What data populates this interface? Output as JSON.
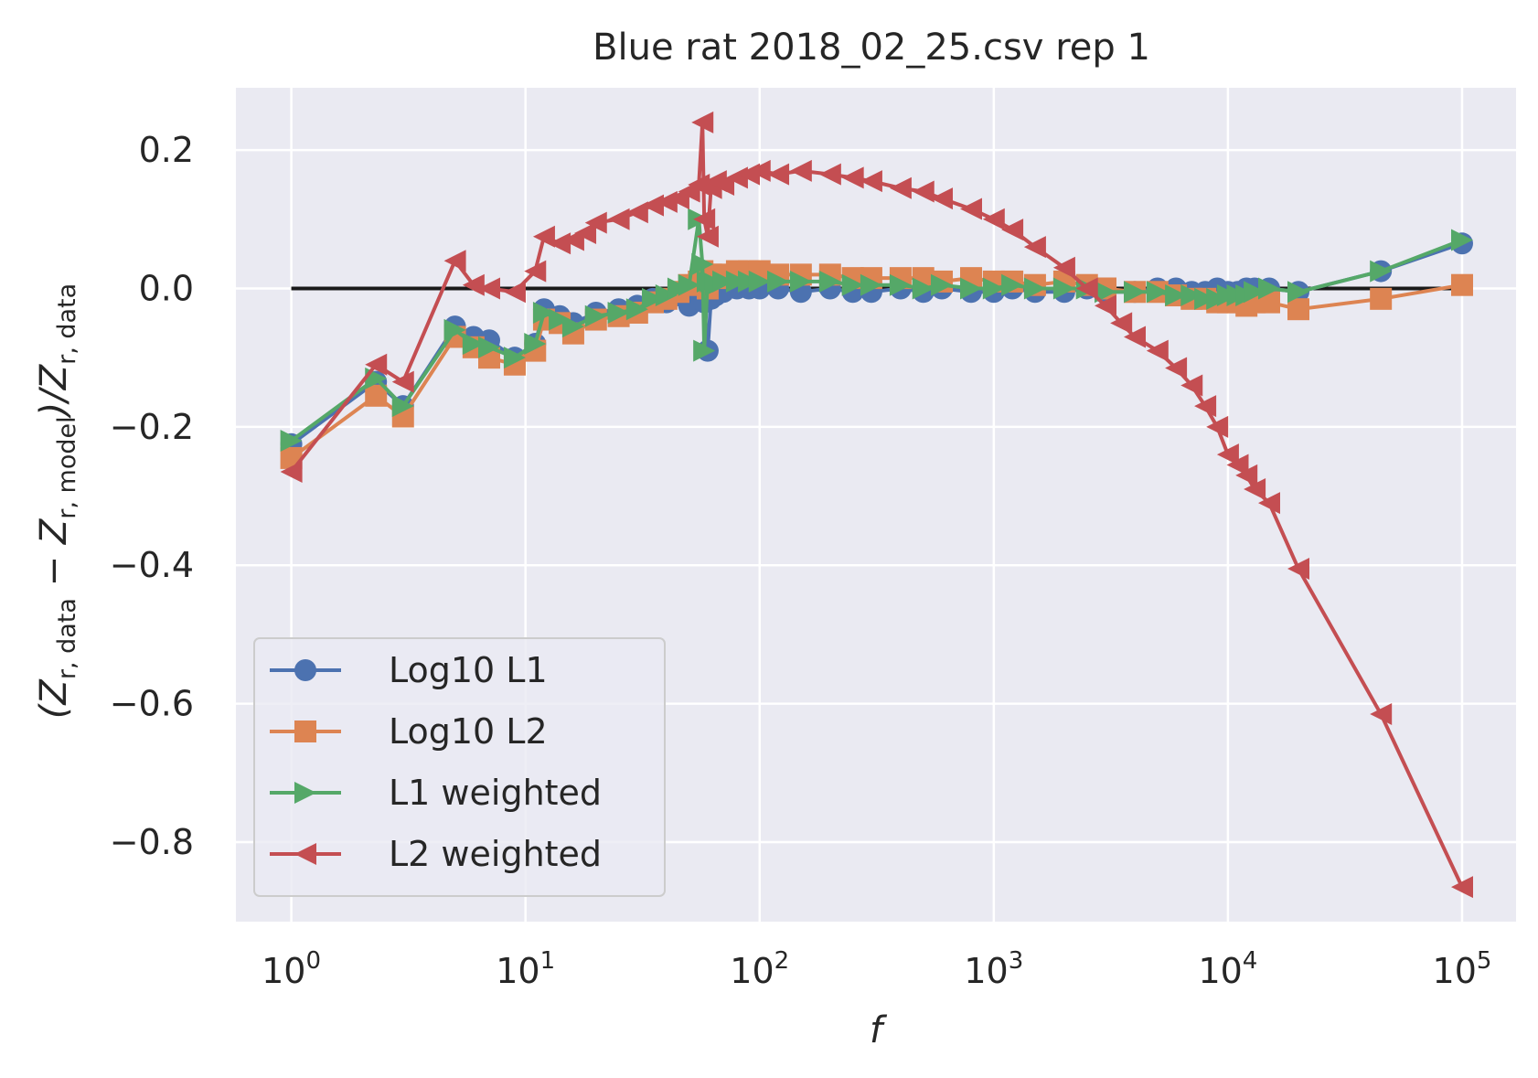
{
  "chart_data": {
    "type": "line",
    "title": "Blue rat 2018_02_25.csv rep 1",
    "xlabel": "f",
    "ylabel": "(Z_{r,data} − Z_{r,model})/Z_{r,data}",
    "ylabel_parts": {
      "open": "(Z",
      "sub1": "r, data",
      "minus": " − Z",
      "sub2": "r, model",
      "close": ")/Z",
      "sub3": "r, data"
    },
    "xscale": "log",
    "xlim": [
      0.58,
      170000
    ],
    "ylim": [
      -0.915,
      0.29
    ],
    "xticks": [
      1,
      10,
      100,
      1000,
      10000,
      100000
    ],
    "xtick_base": "10",
    "xtick_exponents": [
      "0",
      "1",
      "2",
      "3",
      "4",
      "5"
    ],
    "yticks": [
      0.2,
      0.0,
      -0.2,
      -0.4,
      -0.6,
      -0.8
    ],
    "ytick_labels": [
      "0.2",
      "0.0",
      "−0.2",
      "−0.4",
      "−0.6",
      "−0.8"
    ],
    "grid": true,
    "background": "#eaeaf2",
    "legend_position": "lower-left",
    "reference_line": {
      "y": 0.0,
      "x": [
        1,
        100000
      ],
      "color": "#1a1a1a"
    },
    "series": [
      {
        "name": "Log10 L1",
        "marker": "circle",
        "color": "#4c72b0",
        "x": [
          1,
          2.3,
          3,
          5,
          6,
          7,
          9,
          11,
          12,
          14,
          16,
          20,
          25,
          30,
          35,
          40,
          45,
          50,
          55,
          57,
          58,
          60,
          62,
          65,
          70,
          80,
          90,
          100,
          120,
          150,
          200,
          250,
          300,
          400,
          500,
          600,
          800,
          1000,
          1200,
          1500,
          2000,
          2500,
          3000,
          4000,
          5000,
          6000,
          7000,
          8000,
          9000,
          10000,
          11000,
          12000,
          13000,
          15000,
          20000,
          45000,
          100000
        ],
        "y": [
          -0.225,
          -0.135,
          -0.17,
          -0.055,
          -0.07,
          -0.075,
          -0.1,
          -0.08,
          -0.03,
          -0.04,
          -0.05,
          -0.035,
          -0.03,
          -0.025,
          -0.015,
          -0.02,
          -0.01,
          -0.025,
          -0.015,
          0.0,
          -0.02,
          -0.09,
          -0.015,
          -0.01,
          -0.005,
          0.0,
          0.0,
          0.0,
          0.0,
          -0.005,
          0.0,
          -0.005,
          -0.005,
          0.0,
          -0.005,
          0.0,
          -0.005,
          -0.005,
          0.0,
          -0.005,
          -0.005,
          0.0,
          -0.005,
          -0.005,
          0.0,
          0.0,
          -0.005,
          -0.005,
          0.0,
          -0.005,
          -0.005,
          0.0,
          0.0,
          0.0,
          -0.005,
          0.025,
          0.065
        ]
      },
      {
        "name": "Log10 L2",
        "marker": "square",
        "color": "#dd8452",
        "x": [
          1,
          2.3,
          3,
          5,
          6,
          7,
          9,
          11,
          12,
          14,
          16,
          20,
          25,
          30,
          35,
          40,
          45,
          50,
          55,
          57,
          58,
          60,
          62,
          65,
          70,
          80,
          90,
          100,
          120,
          150,
          200,
          250,
          300,
          400,
          500,
          600,
          800,
          1000,
          1200,
          1500,
          2000,
          2500,
          3000,
          4000,
          5000,
          6000,
          7000,
          8000,
          9000,
          10000,
          11000,
          12000,
          13000,
          15000,
          20000,
          45000,
          100000
        ],
        "y": [
          -0.245,
          -0.155,
          -0.185,
          -0.07,
          -0.085,
          -0.1,
          -0.11,
          -0.09,
          -0.045,
          -0.05,
          -0.065,
          -0.045,
          -0.04,
          -0.035,
          -0.02,
          -0.015,
          -0.005,
          0.005,
          0.01,
          0.025,
          0.01,
          0.0,
          0.02,
          0.015,
          0.02,
          0.025,
          0.025,
          0.025,
          0.02,
          0.02,
          0.02,
          0.015,
          0.015,
          0.015,
          0.015,
          0.01,
          0.015,
          0.01,
          0.01,
          0.005,
          0.01,
          0.005,
          0.0,
          -0.005,
          -0.005,
          -0.01,
          -0.015,
          -0.015,
          -0.02,
          -0.02,
          -0.02,
          -0.025,
          -0.02,
          -0.02,
          -0.03,
          -0.015,
          0.005
        ]
      },
      {
        "name": "L1 weighted",
        "marker": "triangle-right",
        "color": "#55a868",
        "x": [
          1,
          2.3,
          3,
          5,
          6,
          7,
          9,
          11,
          12,
          14,
          16,
          20,
          25,
          30,
          35,
          40,
          45,
          50,
          55,
          57,
          58,
          60,
          62,
          65,
          70,
          80,
          90,
          100,
          120,
          150,
          200,
          250,
          300,
          400,
          500,
          600,
          800,
          1000,
          1200,
          1500,
          2000,
          2500,
          3000,
          4000,
          5000,
          6000,
          7000,
          8000,
          9000,
          10000,
          11000,
          12000,
          13000,
          15000,
          20000,
          45000,
          100000
        ],
        "y": [
          -0.22,
          -0.13,
          -0.17,
          -0.06,
          -0.08,
          -0.085,
          -0.1,
          -0.08,
          -0.035,
          -0.045,
          -0.055,
          -0.04,
          -0.035,
          -0.03,
          -0.015,
          -0.01,
          0.0,
          0.005,
          0.1,
          0.035,
          -0.09,
          0.01,
          0.01,
          0.005,
          0.01,
          0.01,
          0.01,
          0.01,
          0.01,
          0.01,
          0.01,
          0.005,
          0.005,
          0.005,
          0.0,
          0.005,
          0.0,
          0.0,
          0.005,
          0.0,
          0.0,
          0.0,
          -0.005,
          -0.005,
          -0.005,
          -0.01,
          -0.01,
          -0.015,
          -0.015,
          -0.01,
          -0.01,
          -0.01,
          -0.005,
          0.0,
          -0.005,
          0.025,
          0.07
        ]
      },
      {
        "name": "L2 weighted",
        "marker": "triangle-left",
        "color": "#c44e52",
        "x": [
          1,
          2.3,
          3,
          5,
          6,
          7,
          9,
          11,
          12,
          14,
          16,
          18,
          20,
          25,
          30,
          35,
          40,
          45,
          50,
          55,
          57,
          58,
          60,
          62,
          65,
          70,
          80,
          90,
          100,
          120,
          150,
          200,
          250,
          300,
          400,
          500,
          600,
          800,
          1000,
          1200,
          1500,
          2000,
          2500,
          3000,
          3500,
          4000,
          5000,
          6000,
          7000,
          8000,
          9000,
          10000,
          11000,
          12000,
          13000,
          15000,
          20000,
          45000,
          100000
        ],
        "y": [
          -0.265,
          -0.11,
          -0.135,
          0.04,
          0.005,
          0.0,
          -0.005,
          0.025,
          0.075,
          0.065,
          0.07,
          0.08,
          0.095,
          0.1,
          0.11,
          0.12,
          0.125,
          0.13,
          0.14,
          0.15,
          0.24,
          0.1,
          0.075,
          0.145,
          0.155,
          0.15,
          0.16,
          0.165,
          0.17,
          0.165,
          0.17,
          0.165,
          0.16,
          0.155,
          0.145,
          0.14,
          0.13,
          0.115,
          0.1,
          0.085,
          0.06,
          0.03,
          0.0,
          -0.025,
          -0.05,
          -0.07,
          -0.09,
          -0.115,
          -0.14,
          -0.17,
          -0.2,
          -0.24,
          -0.255,
          -0.27,
          -0.29,
          -0.31,
          -0.405,
          -0.615,
          -0.865
        ]
      }
    ]
  }
}
